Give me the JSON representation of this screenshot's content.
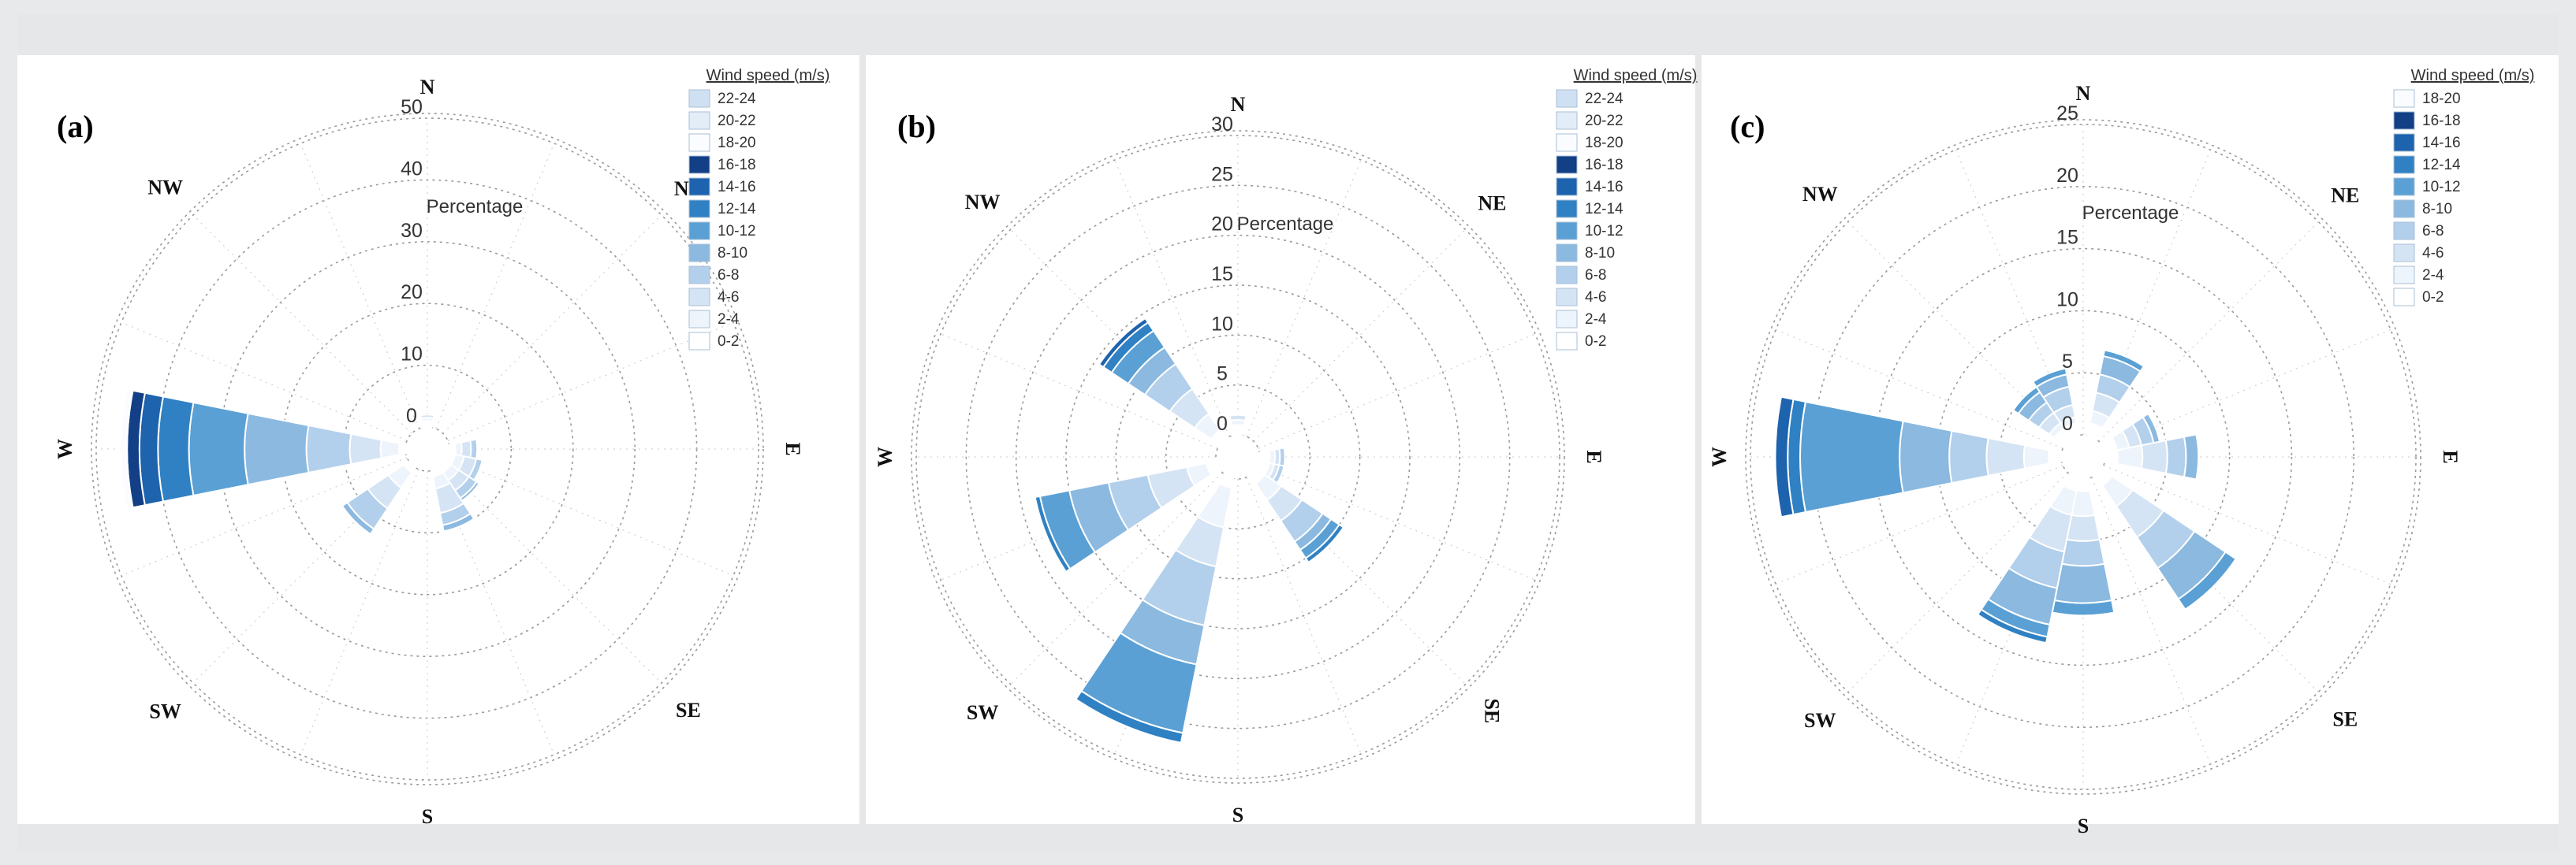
{
  "figure": {
    "colors": {
      "0-2": "#ffffff",
      "2-4": "#eef4fb",
      "4-6": "#d5e4f4",
      "6-8": "#b2cfeb",
      "8-10": "#8bb9e0",
      "10-12": "#5aa0d4",
      "12-14": "#2f81c3",
      "14-16": "#1d63ad",
      "16-18": "#123f85",
      "18-20": "#fafcff",
      "20-22": "#e2edf8",
      "22-24": "#cfe0f2"
    },
    "panels": [
      {
        "label": "(a)",
        "directions": [
          "N",
          "NE",
          "E",
          "SE",
          "S",
          "SW",
          "W",
          "NW"
        ],
        "rlabel": "Percentage",
        "ticks": [
          "0",
          "10",
          "20",
          "30",
          "40",
          "50"
        ],
        "legend_title": "Wind speed (m/s)",
        "legend": [
          "22-24",
          "20-22",
          "18-20",
          "16-18",
          "14-16",
          "12-14",
          "10-12",
          "8-10",
          "6-8",
          "4-6",
          "2-4",
          "0-2"
        ],
        "chart_data": {
          "type": "wind-rose",
          "rmax": 50,
          "sectors": [
            {
              "dir": "N",
              "bins": {
                "0-2": 1,
                "2-4": 0.5,
                "4-6": 0.5
              }
            },
            {
              "dir": "E",
              "bins": {
                "0-2": 1,
                "2-4": 1,
                "4-6": 1.5,
                "6-8": 1
              }
            },
            {
              "dir": "ESE",
              "bins": {
                "0-2": 1,
                "2-4": 1.5,
                "4-6": 2,
                "6-8": 1
              }
            },
            {
              "dir": "SE",
              "bins": {
                "0-2": 1,
                "2-4": 1.5,
                "4-6": 2,
                "6-8": 1.5,
                "8-10": 0.5
              }
            },
            {
              "dir": "SSE",
              "bins": {
                "0-2": 1,
                "2-4": 2,
                "4-6": 4,
                "6-8": 2,
                "8-10": 1
              }
            },
            {
              "dir": "SW",
              "bins": {
                "0-2": 1,
                "2-4": 3,
                "4-6": 4,
                "6-8": 4,
                "8-10": 1
              }
            },
            {
              "dir": "W",
              "bins": {
                "0-2": 1,
                "2-4": 3,
                "4-6": 5,
                "6-8": 7,
                "8-10": 10,
                "10-12": 9,
                "12-14": 5,
                "14-16": 3,
                "16-18": 2,
                "18-20": 1
              }
            }
          ]
        }
      },
      {
        "label": "(b)",
        "directions": [
          "N",
          "NE",
          "E",
          "SE",
          "S",
          "SW",
          "W",
          "NW"
        ],
        "rlabel": "Percentage",
        "ticks": [
          "0",
          "5",
          "10",
          "15",
          "20",
          "25",
          "30"
        ],
        "legend_title": "Wind speed (m/s)",
        "legend": [
          "22-24",
          "20-22",
          "18-20",
          "16-18",
          "14-16",
          "12-14",
          "10-12",
          "8-10",
          "6-8",
          "4-6",
          "2-4",
          "0-2"
        ],
        "chart_data": {
          "type": "wind-rose",
          "rmax": 30,
          "sectors": [
            {
              "dir": "N",
              "bins": {
                "0-2": 1,
                "2-4": 0.5,
                "4-6": 0.5
              }
            },
            {
              "dir": "E",
              "bins": {
                "0-2": 1,
                "2-4": 0.5,
                "4-6": 0.5,
                "6-8": 0.5
              }
            },
            {
              "dir": "ESE",
              "bins": {
                "0-2": 1,
                "2-4": 0.5,
                "4-6": 0.5,
                "6-8": 0.5
              }
            },
            {
              "dir": "SE",
              "bins": {
                "0-2": 1,
                "2-4": 2,
                "4-6": 2.5,
                "6-8": 2.5,
                "8-10": 1,
                "10-12": 1,
                "12-14": 0.5
              }
            },
            {
              "dir": "SSW",
              "bins": {
                "0-2": 1,
                "2-4": 4,
                "4-6": 4,
                "6-8": 6,
                "8-10": 4,
                "10-12": 7,
                "12-14": 1
              }
            },
            {
              "dir": "WSW",
              "bins": {
                "0-2": 1,
                "2-4": 2,
                "4-6": 4,
                "6-8": 4,
                "8-10": 4,
                "10-12": 3,
                "12-14": 0.5
              }
            },
            {
              "dir": "NW",
              "bins": {
                "0-2": 1,
                "2-4": 2,
                "4-6": 3,
                "6-8": 3,
                "8-10": 2,
                "10-12": 2,
                "12-14": 1,
                "14-16": 0.5
              }
            }
          ]
        }
      },
      {
        "label": "(c)",
        "directions": [
          "N",
          "NE",
          "E",
          "SE",
          "S",
          "SW",
          "W",
          "NW"
        ],
        "rlabel": "Percentage",
        "ticks": [
          "0",
          "5",
          "10",
          "15",
          "20",
          "25"
        ],
        "legend_title": "Wind speed (m/s)",
        "legend": [
          "18-20",
          "16-18",
          "14-16",
          "12-14",
          "10-12",
          "8-10",
          "6-8",
          "4-6",
          "2-4",
          "0-2"
        ],
        "chart_data": {
          "type": "wind-rose",
          "rmax": 25,
          "sectors": [
            {
              "dir": "NNE",
              "bins": {
                "0-2": 1,
                "2-4": 1,
                "4-6": 1.5,
                "6-8": 1.5,
                "8-10": 1.5,
                "10-12": 0.5
              }
            },
            {
              "dir": "NNW",
              "bins": {
                "0-2": 1,
                "2-4": 0.5,
                "4-6": 1,
                "6-8": 1.5,
                "8-10": 1,
                "10-12": 0.5
              }
            },
            {
              "dir": "NW",
              "bins": {
                "0-2": 1,
                "2-4": 0.5,
                "4-6": 1,
                "6-8": 1,
                "8-10": 1,
                "10-12": 0.5
              }
            },
            {
              "dir": "ENE",
              "bins": {
                "0-2": 1,
                "2-4": 1,
                "4-6": 1,
                "6-8": 1,
                "8-10": 0.5
              }
            },
            {
              "dir": "E",
              "bins": {
                "0-2": 1,
                "2-4": 2,
                "4-6": 2,
                "6-8": 1.5,
                "8-10": 1
              }
            },
            {
              "dir": "SE",
              "bins": {
                "0-2": 1,
                "2-4": 2,
                "4-6": 3,
                "6-8": 3,
                "8-10": 3,
                "10-12": 1
              }
            },
            {
              "dir": "S",
              "bins": {
                "0-2": 1,
                "2-4": 2,
                "4-6": 2,
                "6-8": 2,
                "8-10": 3,
                "10-12": 1
              }
            },
            {
              "dir": "SSW",
              "bins": {
                "0-2": 1,
                "2-4": 2,
                "4-6": 3,
                "6-8": 3,
                "8-10": 3,
                "10-12": 1,
                "12-14": 0.5
              }
            },
            {
              "dir": "W",
              "bins": {
                "0-2": 1,
                "2-4": 2,
                "4-6": 3,
                "6-8": 3,
                "8-10": 4,
                "10-12": 8,
                "12-14": 1,
                "14-16": 1
              }
            }
          ]
        }
      }
    ]
  }
}
